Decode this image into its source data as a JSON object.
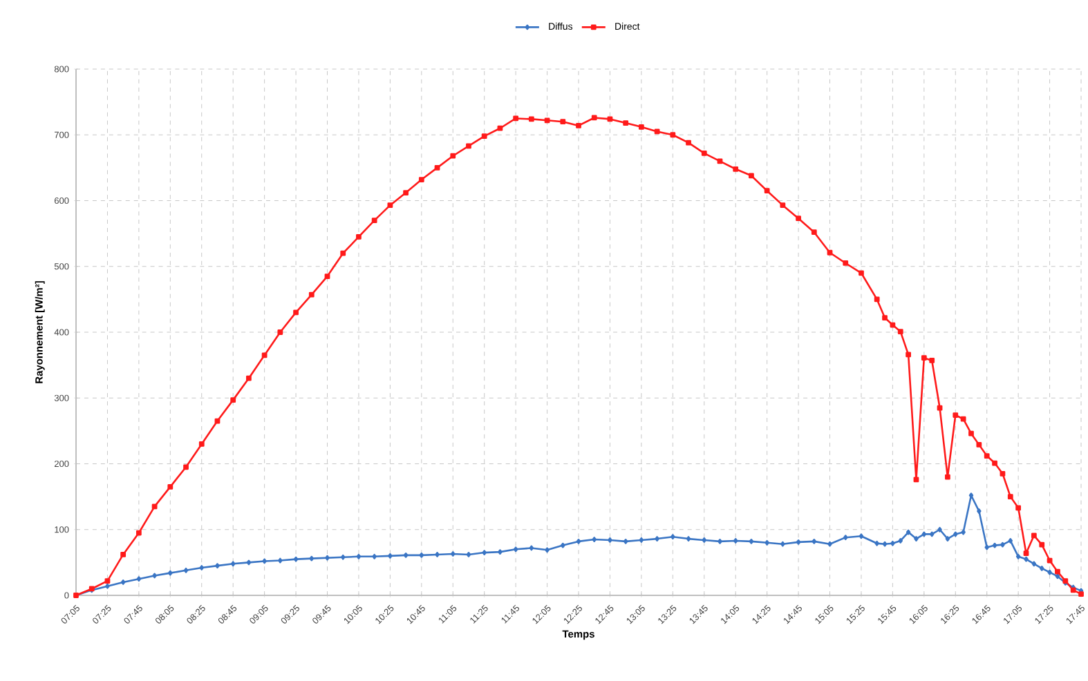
{
  "chart_data": {
    "type": "line",
    "xlabel": "Temps",
    "ylabel": "Rayonnement [W/m²]",
    "x": [
      7.0833,
      7.25,
      7.4167,
      7.5833,
      7.75,
      7.9167,
      8.0833,
      8.25,
      8.4167,
      8.5833,
      8.75,
      8.9167,
      9.0833,
      9.25,
      9.4167,
      9.5833,
      9.75,
      9.9167,
      10.0833,
      10.25,
      10.4167,
      10.5833,
      10.75,
      10.9167,
      11.0833,
      11.25,
      11.4167,
      11.5833,
      11.75,
      11.9167,
      12.0833,
      12.25,
      12.4167,
      12.5833,
      12.75,
      12.9167,
      13.0833,
      13.25,
      13.4167,
      13.5833,
      13.75,
      13.9167,
      14.0833,
      14.25,
      14.4167,
      14.5833,
      14.75,
      14.9167,
      15.0833,
      15.25,
      15.4167,
      15.5833,
      15.6667,
      15.75,
      15.8333,
      15.9167,
      16.0,
      16.0833,
      16.1667,
      16.25,
      16.3333,
      16.4167,
      16.5,
      16.5833,
      16.6667,
      16.75,
      16.8333,
      16.9167,
      17.0,
      17.0833,
      17.1667,
      17.25,
      17.3333,
      17.4167,
      17.5,
      17.5833,
      17.6667,
      17.75
    ],
    "series": [
      {
        "name": "Diffus",
        "color": "#3a75c4",
        "marker": "diamond",
        "values": [
          0,
          8,
          14,
          20,
          25,
          30,
          34,
          38,
          42,
          45,
          48,
          50,
          52,
          53,
          55,
          56,
          57,
          58,
          59,
          59,
          60,
          61,
          61,
          62,
          63,
          62,
          65,
          66,
          70,
          72,
          69,
          76,
          82,
          85,
          84,
          82,
          84,
          86,
          89,
          86,
          84,
          82,
          83,
          82,
          80,
          78,
          81,
          82,
          78,
          88,
          90,
          79,
          78,
          79,
          83,
          96,
          86,
          93,
          93,
          100,
          86,
          93,
          96,
          152,
          128,
          73,
          76,
          77,
          83,
          59,
          55,
          48,
          41,
          35,
          29,
          19,
          12,
          7
        ]
      },
      {
        "name": "Direct",
        "color": "#ff1a1a",
        "marker": "square",
        "values": [
          0,
          10,
          22,
          62,
          95,
          135,
          165,
          195,
          230,
          265,
          297,
          330,
          365,
          400,
          430,
          457,
          485,
          520,
          545,
          570,
          593,
          612,
          632,
          650,
          668,
          683,
          698,
          710,
          725,
          724,
          722,
          720,
          714,
          726,
          724,
          718,
          712,
          705,
          700,
          688,
          672,
          660,
          648,
          638,
          615,
          593,
          573,
          552,
          521,
          505,
          490,
          450,
          422,
          411,
          401,
          366,
          176,
          361,
          357,
          285,
          180,
          274,
          268,
          246,
          229,
          212,
          201,
          185,
          150,
          133,
          64,
          91,
          77,
          53,
          36,
          22,
          8,
          2
        ]
      }
    ],
    "xlim": [
      7.0833,
      17.75
    ],
    "xticks": [
      {
        "value": 7.0833,
        "label": "07:05"
      },
      {
        "value": 7.4167,
        "label": "07:25"
      },
      {
        "value": 7.75,
        "label": "07:45"
      },
      {
        "value": 8.0833,
        "label": "08:05"
      },
      {
        "value": 8.4167,
        "label": "08:25"
      },
      {
        "value": 8.75,
        "label": "08:45"
      },
      {
        "value": 9.0833,
        "label": "09:05"
      },
      {
        "value": 9.4167,
        "label": "09:25"
      },
      {
        "value": 9.75,
        "label": "09:45"
      },
      {
        "value": 10.0833,
        "label": "10:05"
      },
      {
        "value": 10.4167,
        "label": "10:25"
      },
      {
        "value": 10.75,
        "label": "10:45"
      },
      {
        "value": 11.0833,
        "label": "11:05"
      },
      {
        "value": 11.4167,
        "label": "11:25"
      },
      {
        "value": 11.75,
        "label": "11:45"
      },
      {
        "value": 12.0833,
        "label": "12:05"
      },
      {
        "value": 12.4167,
        "label": "12:25"
      },
      {
        "value": 12.75,
        "label": "12:45"
      },
      {
        "value": 13.0833,
        "label": "13:05"
      },
      {
        "value": 13.4167,
        "label": "13:25"
      },
      {
        "value": 13.75,
        "label": "13:45"
      },
      {
        "value": 14.0833,
        "label": "14:05"
      },
      {
        "value": 14.4167,
        "label": "14:25"
      },
      {
        "value": 14.75,
        "label": "14:45"
      },
      {
        "value": 15.0833,
        "label": "15:05"
      },
      {
        "value": 15.4167,
        "label": "15:25"
      },
      {
        "value": 15.75,
        "label": "15:45"
      },
      {
        "value": 16.0833,
        "label": "16:05"
      },
      {
        "value": 16.4167,
        "label": "16:25"
      },
      {
        "value": 16.75,
        "label": "16:45"
      },
      {
        "value": 17.0833,
        "label": "17:05"
      },
      {
        "value": 17.4167,
        "label": "17:25"
      },
      {
        "value": 17.75,
        "label": "17:45"
      }
    ],
    "ylim": [
      0,
      800
    ],
    "yticks": [
      0,
      100,
      200,
      300,
      400,
      500,
      600,
      700,
      800
    ],
    "grid": true,
    "legend": "top",
    "line_style": "solid"
  }
}
